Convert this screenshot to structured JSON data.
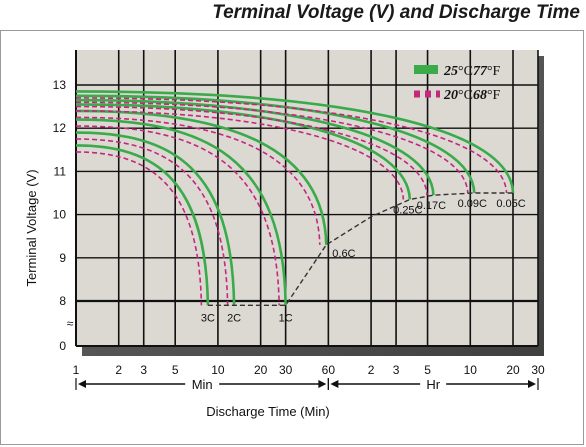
{
  "chart_data": {
    "type": "line",
    "title": "Terminal Voltage (V) and Discharge Time",
    "xlabel": "Discharge Time (Min)",
    "ylabel": "Terminal Voltage (V)",
    "x_scale": "log",
    "xlim_min": [
      1,
      1800
    ],
    "ylim": [
      0,
      13.5
    ],
    "y_axis_break": "≈",
    "y_ticks": [
      0,
      8,
      9,
      10,
      11,
      12,
      13
    ],
    "x_ticks": [
      {
        "label": "1",
        "min": 1
      },
      {
        "label": "2",
        "min": 2
      },
      {
        "label": "3",
        "min": 3
      },
      {
        "label": "5",
        "min": 5
      },
      {
        "label": "10",
        "min": 10
      },
      {
        "label": "20",
        "min": 20
      },
      {
        "label": "30",
        "min": 30
      },
      {
        "label": "60",
        "min": 60
      },
      {
        "label": "2",
        "min": 120
      },
      {
        "label": "3",
        "min": 180
      },
      {
        "label": "5",
        "min": 300
      },
      {
        "label": "10",
        "min": 600
      },
      {
        "label": "20",
        "min": 1200
      },
      {
        "label": "30",
        "min": 1800
      }
    ],
    "unit_ranges": [
      {
        "label": "Min",
        "from_min": 1,
        "to_min": 60
      },
      {
        "label": "Hr",
        "from_min": 60,
        "to_min": 1800
      }
    ],
    "legend": [
      {
        "label_num": "25",
        "label_unit_c": "°C",
        "label_f_num": "77",
        "label_unit_f": "°F",
        "style": "solid",
        "color": "#3aaa4a"
      },
      {
        "label_num": "20",
        "label_unit_c": "°C",
        "label_f_num": "68",
        "label_unit_f": "°F",
        "style": "dashed",
        "color": "#c4287c"
      }
    ],
    "legend_position": "top-right",
    "grid": true,
    "series": [
      {
        "name": "3C",
        "start_v": 11.6,
        "end_min": 8.5,
        "end_v": 7.9
      },
      {
        "name": "2C",
        "start_v": 11.9,
        "end_min": 13,
        "end_v": 7.9
      },
      {
        "name": "1C",
        "start_v": 12.2,
        "end_min": 30,
        "end_v": 7.9
      },
      {
        "name": "0.6C",
        "start_v": 12.4,
        "end_min": 58,
        "end_v": 9.3
      },
      {
        "name": "0.25C",
        "start_v": 12.55,
        "end_min": 225,
        "end_v": 10.35
      },
      {
        "name": "0.17C",
        "start_v": 12.65,
        "end_min": 330,
        "end_v": 10.45
      },
      {
        "name": "0.09C",
        "start_v": 12.75,
        "end_min": 640,
        "end_v": 10.5
      },
      {
        "name": "0.05C",
        "start_v": 12.85,
        "end_min": 1200,
        "end_v": 10.5
      }
    ],
    "endpoint_curve": [
      {
        "min": 8.5,
        "v": 7.9
      },
      {
        "min": 30,
        "v": 7.9
      },
      {
        "min": 58,
        "v": 9.3
      },
      {
        "min": 120,
        "v": 9.95
      },
      {
        "min": 225,
        "v": 10.35
      },
      {
        "min": 330,
        "v": 10.45
      },
      {
        "min": 640,
        "v": 10.5
      },
      {
        "min": 1200,
        "v": 10.5
      }
    ]
  }
}
